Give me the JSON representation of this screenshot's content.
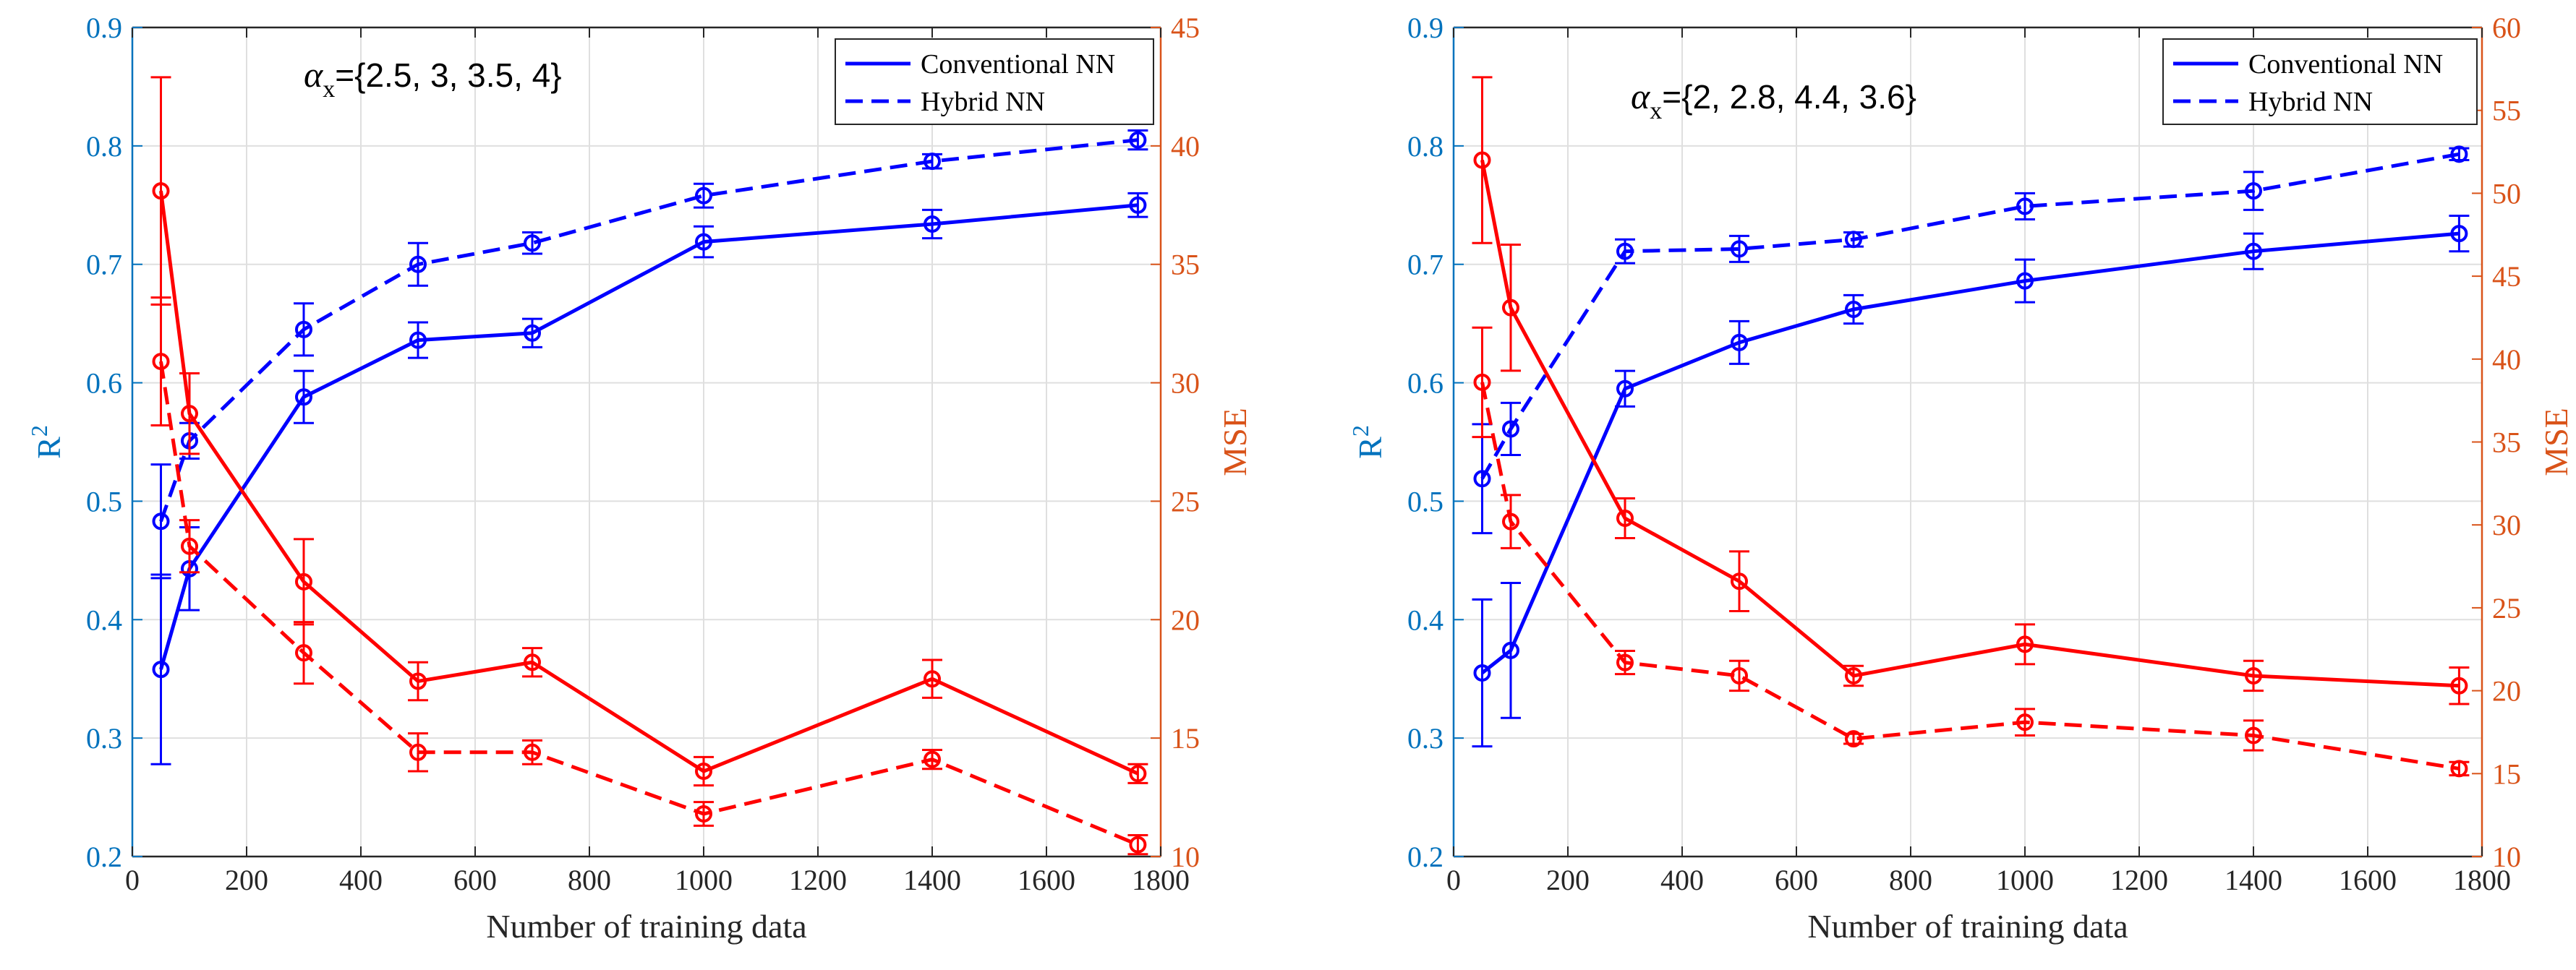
{
  "colors": {
    "r2_axis": "#0072BD",
    "mse_axis": "#D95319",
    "r2_series": "#0000FF",
    "mse_series": "#FF0000",
    "grid": "#DFDFDF",
    "axis": "#262626"
  },
  "chart_data": [
    {
      "type": "line",
      "title": "",
      "annotation": {
        "alpha": "α",
        "subscript": "x",
        "rest": "={2.5, 3, 3.5, 4}"
      },
      "xlabel": "Number of training data",
      "ylabel_left": {
        "base": "R",
        "sup": "2"
      },
      "ylabel_right": "MSE",
      "xlim": [
        0,
        1800
      ],
      "xticks": [
        0,
        200,
        400,
        600,
        800,
        1000,
        1200,
        1400,
        1600,
        1800
      ],
      "ylim_left": [
        0.2,
        0.9
      ],
      "yticks_left": [
        0.2,
        0.3,
        0.4,
        0.5,
        0.6,
        0.7,
        0.8,
        0.9
      ],
      "ylim_right": [
        10,
        45
      ],
      "yticks_right": [
        10,
        15,
        20,
        25,
        30,
        35,
        40,
        45
      ],
      "grid": true,
      "legend": {
        "placement": "top-right",
        "entries": [
          "Conventional NN",
          "Hybrid NN"
        ]
      },
      "x": [
        50,
        100,
        300,
        500,
        700,
        1000,
        1400,
        1760
      ],
      "series": [
        {
          "name": "Conventional NN",
          "axis": "left",
          "style": "solid",
          "values": [
            0.358,
            0.443,
            0.588,
            0.636,
            0.642,
            0.719,
            0.734,
            0.75
          ],
          "errors": [
            0.08,
            0.035,
            0.022,
            0.015,
            0.012,
            0.013,
            0.012,
            0.01
          ]
        },
        {
          "name": "Hybrid NN",
          "axis": "left",
          "style": "dashed",
          "values": [
            0.483,
            0.551,
            0.645,
            0.7,
            0.718,
            0.758,
            0.787,
            0.805
          ],
          "errors": [
            0.048,
            0.015,
            0.022,
            0.018,
            0.009,
            0.01,
            0.006,
            0.008
          ]
        },
        {
          "name": "MSE Conventional NN",
          "axis": "right",
          "style": "solid",
          "values": [
            38.1,
            28.7,
            21.6,
            17.4,
            18.2,
            13.6,
            17.5,
            13.5
          ],
          "errors": [
            4.8,
            1.7,
            1.8,
            0.8,
            0.6,
            0.6,
            0.8,
            0.4
          ]
        },
        {
          "name": "MSE Hybrid NN",
          "axis": "right",
          "style": "dashed",
          "values": [
            30.9,
            23.1,
            18.6,
            14.4,
            14.4,
            11.8,
            14.1,
            10.5
          ],
          "errors": [
            2.7,
            1.1,
            1.3,
            0.8,
            0.5,
            0.5,
            0.4,
            0.4
          ]
        }
      ]
    },
    {
      "type": "line",
      "title": "",
      "annotation": {
        "alpha": "α",
        "subscript": "x",
        "rest": "={2, 2.8, 4.4, 3.6}"
      },
      "xlabel": "Number of training data",
      "ylabel_left": {
        "base": "R",
        "sup": "2"
      },
      "ylabel_right": "MSE",
      "xlim": [
        0,
        1800
      ],
      "xticks": [
        0,
        200,
        400,
        600,
        800,
        1000,
        1200,
        1400,
        1600,
        1800
      ],
      "ylim_left": [
        0.2,
        0.9
      ],
      "yticks_left": [
        0.2,
        0.3,
        0.4,
        0.5,
        0.6,
        0.7,
        0.8,
        0.9
      ],
      "ylim_right": [
        10,
        60
      ],
      "yticks_right": [
        10,
        15,
        20,
        25,
        30,
        35,
        40,
        45,
        50,
        55,
        60
      ],
      "grid": true,
      "legend": {
        "placement": "top-right",
        "entries": [
          "Conventional NN",
          "Hybrid NN"
        ]
      },
      "x": [
        50,
        100,
        300,
        500,
        700,
        1000,
        1400,
        1760
      ],
      "series": [
        {
          "name": "Conventional NN",
          "axis": "left",
          "style": "solid",
          "values": [
            0.355,
            0.374,
            0.595,
            0.634,
            0.662,
            0.686,
            0.711,
            0.726
          ],
          "errors": [
            0.062,
            0.057,
            0.015,
            0.018,
            0.012,
            0.018,
            0.015,
            0.015
          ]
        },
        {
          "name": "Hybrid NN",
          "axis": "left",
          "style": "dashed",
          "values": [
            0.519,
            0.561,
            0.711,
            0.713,
            0.721,
            0.749,
            0.762,
            0.793
          ],
          "errors": [
            0.046,
            0.022,
            0.01,
            0.011,
            0.006,
            0.011,
            0.016,
            0.005
          ]
        },
        {
          "name": "MSE Conventional NN",
          "axis": "right",
          "style": "solid",
          "values": [
            52.0,
            43.1,
            30.4,
            26.6,
            20.9,
            22.8,
            20.9,
            20.3
          ],
          "errors": [
            5.0,
            3.8,
            1.2,
            1.8,
            0.6,
            1.2,
            0.9,
            1.1
          ]
        },
        {
          "name": "MSE Hybrid NN",
          "axis": "right",
          "style": "dashed",
          "values": [
            38.6,
            30.2,
            21.7,
            20.9,
            17.1,
            18.1,
            17.3,
            15.3
          ],
          "errors": [
            3.3,
            1.6,
            0.7,
            0.9,
            0.3,
            0.8,
            0.9,
            0.4
          ]
        }
      ]
    }
  ]
}
